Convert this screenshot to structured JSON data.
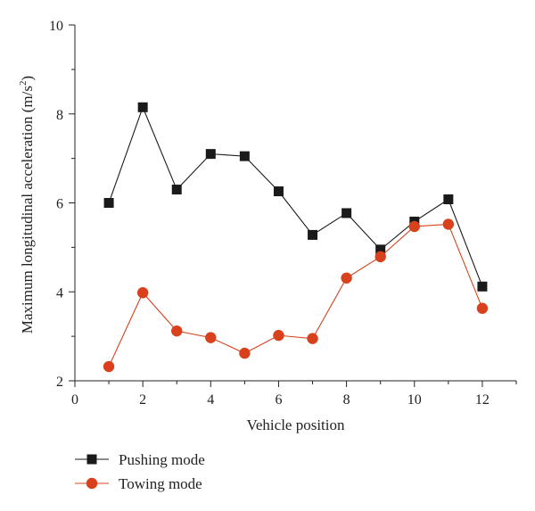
{
  "chart_data": {
    "type": "line",
    "title": "",
    "xlabel": "Vehicle position",
    "ylabel_main": "Maximum longitudinal acceleration (m/s",
    "ylabel_sup": "2",
    "ylabel_tail": ")",
    "xlim": [
      0,
      13
    ],
    "ylim": [
      2,
      10
    ],
    "xticks": [
      0,
      2,
      4,
      6,
      8,
      10,
      12
    ],
    "yticks": [
      2,
      4,
      6,
      8,
      10
    ],
    "grid": false,
    "legend_position": "bottom-left",
    "x": [
      1,
      2,
      3,
      4,
      5,
      6,
      7,
      8,
      9,
      10,
      11,
      12
    ],
    "series": [
      {
        "name": "Pushing mode",
        "marker": "square",
        "color": "#1a1a1a",
        "values": [
          6.0,
          8.15,
          6.3,
          7.1,
          7.05,
          6.26,
          5.28,
          5.77,
          4.95,
          5.58,
          6.08,
          4.12
        ]
      },
      {
        "name": "Towing mode",
        "marker": "circle",
        "color": "#d8411c",
        "values": [
          2.32,
          3.98,
          3.12,
          2.97,
          2.62,
          3.02,
          2.95,
          4.31,
          4.79,
          5.47,
          5.52,
          3.63
        ]
      }
    ]
  }
}
